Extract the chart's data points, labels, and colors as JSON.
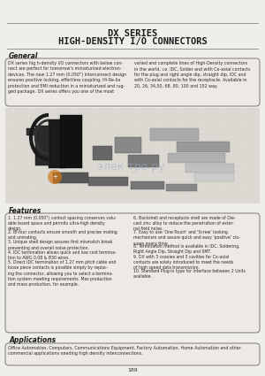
{
  "title_line1": "DX SERIES",
  "title_line2": "HIGH-DENSITY I/O CONNECTORS",
  "bg_color": "#f0eeea",
  "title_color": "#1a1a1a",
  "section_header_color": "#1a1a1a",
  "body_text_color": "#2a2a2a",
  "box_bg": "#f5f2ee",
  "box_border": "#666666",
  "page_number": "189",
  "general_header": "General",
  "general_text_left": "DX series hig h-density I/O connectors with below con-\nnect are perfect for tomorrow's miniaturized electron-\ndevices. The new 1.27 mm (0.050\") Interconnect design\nensures positive locking, effortless coupling, Hi-Re-lia\nprotection and EMI reduction in a miniaturized and rug-\nged package. DX series offers you one of the most",
  "general_text_right": "varied and complete lines of High-Density connectors\nin the world, i.e. IDC, Solder and with Co-axial contacts\nfor the plug and right angle dip, straight dip, IDC and\nwith Co-axial contacts for the receptacle. Available in\n20, 26, 34,50, 68, 80, 100 and 152 way.",
  "features_header": "Features",
  "features_left": [
    "1.27 mm (0.050\") contact spacing conserves valu-\nable board space and permits ultra-high density\ndesign.",
    "Bi-four contacts ensure smooth and precise mating\nand unmating.",
    "Unique shell design assures first mismatch break\npreventing and overall noise protection.",
    "IDC termination allows quick and low cost termina-\ntion to AWG 0.08 & B30 wires.",
    "Direct IDC termination of 1.27 mm pitch cable and\nloose piece contacts is possible simply by replac-\ning the connector, allowing you to select a termina-\ntion system meeting requirements. Mas production\nand mass production, for example."
  ],
  "features_right": [
    "Backshell and receptacle shell are made of Die-\ncast zinc alloy to reduce the penetration of exter-\nnal field noise.",
    "Easy to use 'One-Touch' and 'Screw' looking\nmechanism and assure quick and easy 'positive' clo-\nsures every time.",
    "Termination method is available in IDC, Soldering,\nRight Angle Dip, Straight Dip and SMT.",
    "DX with 3 coaxies and 3 cavities for Co-axial\ncontacts are solely introduced to meet the needs\nof high speed data transmission.",
    "Standard Plug-in type for interface between 2 Units\navailable."
  ],
  "features_numbers_left": [
    "1.",
    "2.",
    "3.",
    "4.",
    "5."
  ],
  "features_numbers_right": [
    "6.",
    "7.",
    "8.",
    "9.",
    "10."
  ],
  "applications_header": "Applications",
  "applications_text": "Office Automation, Computers, Communications Equipment, Factory Automation, Home Automation and other\ncommercial applications needing high density interconnections."
}
